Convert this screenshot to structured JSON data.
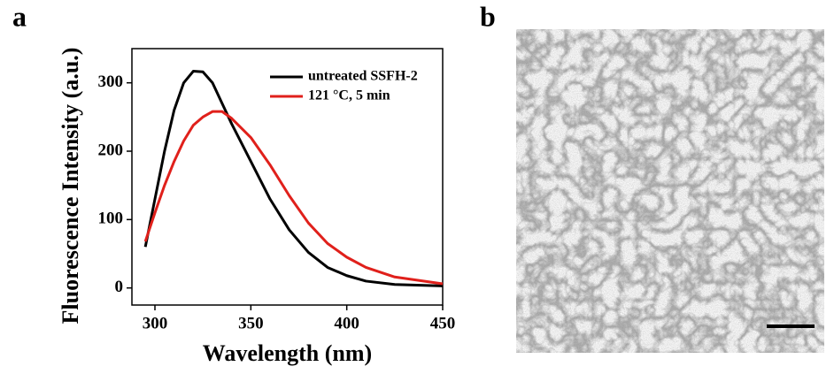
{
  "panel_labels": [
    "a",
    "b"
  ],
  "chart_data": {
    "type": "line",
    "xlabel": "Wavelength (nm)",
    "ylabel": "Fluorescence Intensity (a.u.)",
    "x": [
      295,
      300,
      305,
      310,
      315,
      320,
      325,
      330,
      335,
      340,
      350,
      360,
      370,
      380,
      390,
      400,
      410,
      425,
      450
    ],
    "series": [
      {
        "name": "untreated SSFH-2",
        "color": "#000000",
        "values": [
          60,
          130,
          200,
          260,
          300,
          317,
          316,
          300,
          270,
          240,
          185,
          130,
          85,
          52,
          30,
          18,
          10,
          5,
          3
        ]
      },
      {
        "name": "121 °C, 5 min",
        "color": "#e0201b",
        "values": [
          68,
          110,
          150,
          185,
          215,
          238,
          250,
          258,
          258,
          248,
          220,
          180,
          135,
          95,
          65,
          45,
          30,
          16,
          6
        ]
      }
    ],
    "xlim": [
      288,
      450
    ],
    "ylim": [
      -25,
      350
    ],
    "xticks": [
      300,
      350,
      400,
      450
    ],
    "yticks": [
      0,
      100,
      200,
      300
    ],
    "legend": "upper right"
  }
}
